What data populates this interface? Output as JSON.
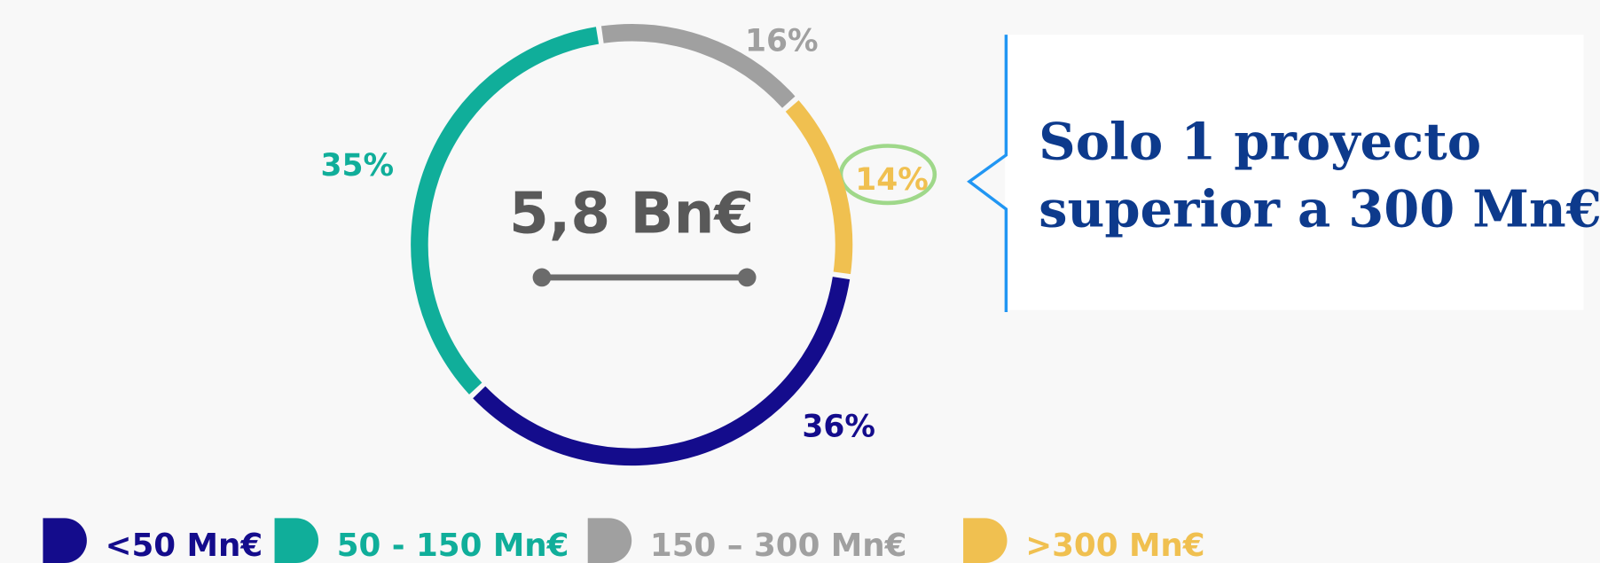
{
  "chart_data": {
    "type": "donut",
    "categories": [
      "<50 Mn€",
      "50 - 150 Mn€",
      "150 –  300 Mn€",
      ">300 Mn€"
    ],
    "values": [
      36,
      35,
      16,
      14
    ],
    "value_labels": [
      "36%",
      "35%",
      "16%",
      "14%"
    ],
    "colors": [
      "#140c8c",
      "#10ae9a",
      "#a0a0a0",
      "#f0c050"
    ],
    "center_label": "5,8 Bn€",
    "annotation": [
      "Solo 1 proyecto",
      "superior a 300 Mn€"
    ]
  }
}
